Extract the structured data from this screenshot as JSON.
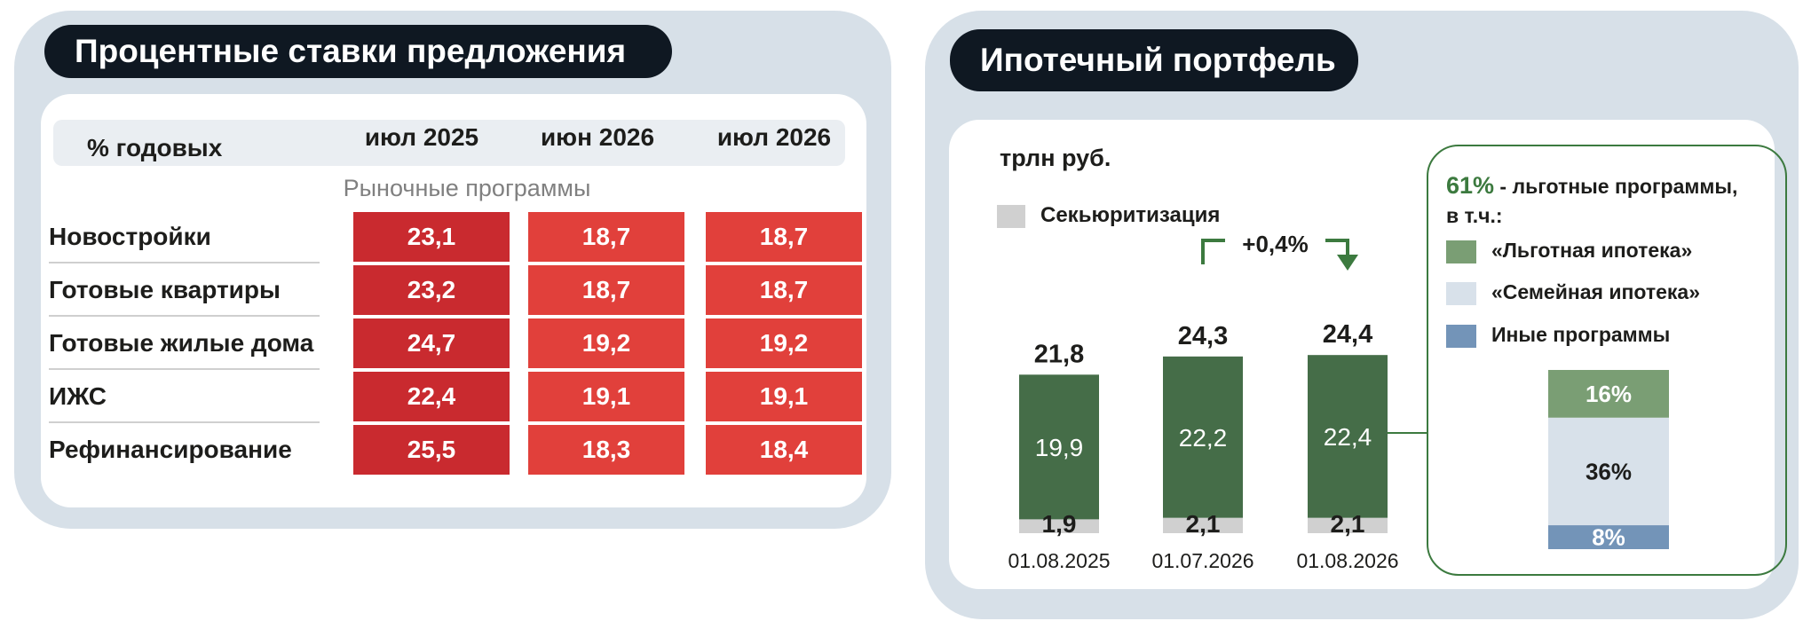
{
  "left": {
    "title": "Процентные ставки предложения",
    "unit_header": "% годовых",
    "columns": [
      "июл 2025",
      "июн 2026",
      "июл 2026"
    ],
    "subheader": "Рыночные программы",
    "rows": [
      {
        "label": "Новостройки",
        "values": [
          "23,1",
          "18,7",
          "18,7"
        ]
      },
      {
        "label": "Готовые квартиры",
        "values": [
          "23,2",
          "18,7",
          "18,7"
        ]
      },
      {
        "label": "Готовые жилые дома",
        "values": [
          "24,7",
          "19,2",
          "19,2"
        ]
      },
      {
        "label": "ИЖС",
        "values": [
          "22,4",
          "19,1",
          "19,1"
        ]
      },
      {
        "label": "Рефинансирование",
        "values": [
          "25,5",
          "18,3",
          "18,4"
        ]
      }
    ],
    "colors": {
      "first_col": "#c92a2f",
      "other_cols": "#e1403b"
    }
  },
  "right": {
    "title": "Ипотечный портфель",
    "unit": "трлн руб.",
    "legend_securitization": "Секьюритизация",
    "change_label": "+0,4%",
    "breakdown": {
      "share": "61%",
      "share_text": " - льготные программы,",
      "share_text2": "в т.ч.:",
      "legend": [
        {
          "label": "«Льготная ипотека»",
          "color": "#7a9e74"
        },
        {
          "label": "«Семейная ипотека»",
          "color": "#d8e1ea"
        },
        {
          "label": "Иные программы",
          "color": "#7394b8"
        }
      ],
      "segments": [
        {
          "label": "16%",
          "value": 16,
          "color": "#7a9e74",
          "text_color": "#ffffff"
        },
        {
          "label": "36%",
          "value": 36,
          "color": "#d8e1ea",
          "text_color": "#1d1d1b"
        },
        {
          "label": "8%",
          "value": 8,
          "color": "#7394b8",
          "text_color": "#ffffff"
        }
      ]
    }
  },
  "chart_data": {
    "type": "bar",
    "categories": [
      "01.08.2025",
      "01.07.2026",
      "01.08.2026"
    ],
    "series": [
      {
        "name": "",
        "values": [
          19.9,
          22.2,
          22.4
        ],
        "labels": [
          "19,9",
          "22,2",
          "22,4"
        ],
        "color": "#456d48"
      },
      {
        "name": "Секьюритизация",
        "values": [
          1.9,
          2.1,
          2.1
        ],
        "labels": [
          "1,9",
          "2,1",
          "2,1"
        ],
        "color": "#d0d0d0"
      }
    ],
    "totals": [
      21.8,
      24.3,
      24.4
    ],
    "total_labels": [
      "21,8",
      "24,3",
      "24,4"
    ],
    "ylabel": "трлн руб.",
    "stacked": true
  }
}
